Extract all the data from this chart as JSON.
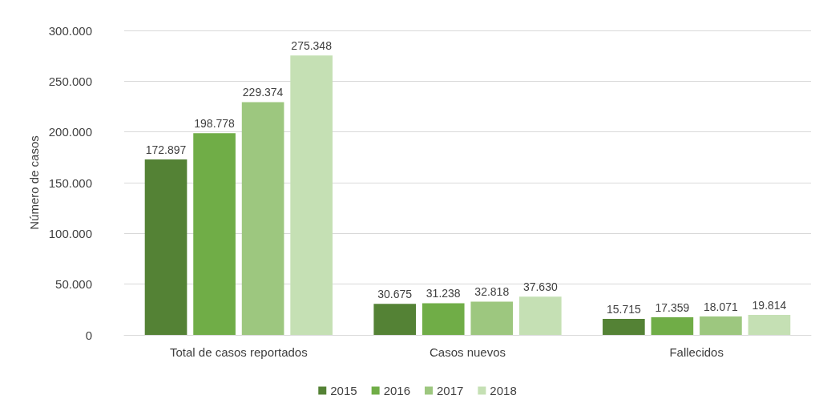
{
  "chart_data": {
    "type": "bar",
    "ylabel": "Número de casos",
    "categories": [
      "Total de casos reportados",
      "Casos nuevos",
      "Fallecidos"
    ],
    "series": [
      {
        "name": "2015",
        "color": "#548235",
        "values": [
          172897,
          30675,
          15715
        ],
        "value_labels": [
          "172.897",
          "30.675",
          "15.715"
        ]
      },
      {
        "name": "2016",
        "color": "#70ad47",
        "values": [
          198778,
          31238,
          17359
        ],
        "value_labels": [
          "198.778",
          "31.238",
          "17.359"
        ]
      },
      {
        "name": "2017",
        "color": "#9dc77f",
        "values": [
          229374,
          32818,
          18071
        ],
        "value_labels": [
          "229.374",
          "32.818",
          "18.071"
        ]
      },
      {
        "name": "2018",
        "color": "#c5e0b4",
        "values": [
          275348,
          37630,
          19814
        ],
        "value_labels": [
          "275.348",
          "37.630",
          "19.814"
        ]
      }
    ],
    "ylim": [
      0,
      300000
    ],
    "yticks": [
      {
        "value": 0,
        "label": "0"
      },
      {
        "value": 50000,
        "label": "50.000"
      },
      {
        "value": 100000,
        "label": "100.000"
      },
      {
        "value": 150000,
        "label": "150.000"
      },
      {
        "value": 200000,
        "label": "200.000"
      },
      {
        "value": 250000,
        "label": "250.000"
      },
      {
        "value": 300000,
        "label": "300.000"
      }
    ],
    "grid": "y",
    "legend": "bottom"
  }
}
